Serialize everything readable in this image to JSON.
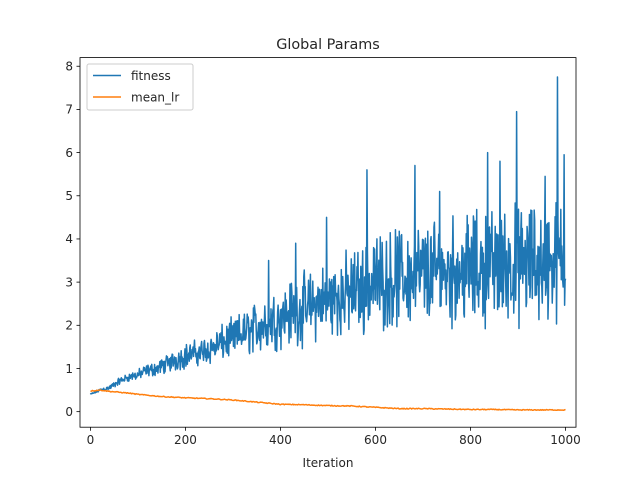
{
  "chart_data": {
    "type": "line",
    "title": "Global Params",
    "xlabel": "Iteration",
    "ylabel": "",
    "xlim": [
      -22,
      1022
    ],
    "ylim": [
      -0.36,
      8.2
    ],
    "xticks": [
      0,
      200,
      400,
      600,
      800,
      1000
    ],
    "yticks": [
      0,
      1,
      2,
      3,
      4,
      5,
      6,
      7,
      8
    ],
    "legend_position": "top-left",
    "grid": false,
    "series": [
      {
        "name": "fitness",
        "color": "#1f77b4",
        "x": [
          0,
          20,
          40,
          60,
          80,
          100,
          120,
          140,
          160,
          180,
          200,
          220,
          240,
          260,
          280,
          300,
          320,
          340,
          360,
          380,
          400,
          420,
          440,
          460,
          480,
          500,
          520,
          540,
          560,
          580,
          600,
          620,
          640,
          660,
          680,
          700,
          720,
          740,
          760,
          780,
          800,
          820,
          840,
          860,
          880,
          900,
          920,
          940,
          960,
          980,
          1000
        ],
        "y": [
          0.4,
          0.5,
          0.55,
          0.7,
          0.8,
          0.85,
          0.95,
          1.0,
          1.1,
          1.2,
          1.3,
          1.35,
          1.4,
          1.5,
          1.6,
          1.7,
          1.8,
          1.9,
          2.0,
          2.1,
          2.2,
          2.3,
          2.35,
          2.4,
          2.5,
          2.6,
          2.65,
          2.7,
          2.8,
          2.9,
          3.0,
          3.05,
          3.1,
          3.1,
          3.15,
          3.2,
          3.2,
          3.25,
          3.25,
          3.3,
          3.3,
          3.3,
          3.35,
          3.35,
          3.4,
          3.4,
          3.4,
          3.45,
          3.45,
          3.5,
          3.5
        ],
        "noise_amplitude": [
          0.02,
          0.05,
          0.08,
          0.1,
          0.12,
          0.15,
          0.18,
          0.2,
          0.25,
          0.3,
          0.35,
          0.35,
          0.4,
          0.45,
          0.5,
          0.55,
          0.6,
          0.7,
          0.75,
          0.8,
          0.85,
          0.9,
          0.95,
          1.0,
          1.0,
          1.05,
          1.1,
          1.15,
          1.2,
          1.25,
          1.3,
          1.3,
          1.35,
          1.4,
          1.4,
          1.45,
          1.45,
          1.5,
          1.5,
          1.5,
          1.55,
          1.55,
          1.6,
          1.6,
          1.6,
          1.65,
          1.65,
          1.7,
          1.7,
          1.7,
          1.7
        ],
        "peaks": [
          [
            375,
            3.5
          ],
          [
            432,
            3.9
          ],
          [
            497,
            4.5
          ],
          [
            582,
            5.6
          ],
          [
            596,
            3.8
          ],
          [
            683,
            5.7
          ],
          [
            735,
            5.1
          ],
          [
            836,
            6.0
          ],
          [
            862,
            5.8
          ],
          [
            897,
            6.95
          ],
          [
            957,
            5.45
          ],
          [
            983,
            7.75
          ],
          [
            997,
            5.95
          ]
        ]
      },
      {
        "name": "mean_lr",
        "color": "#ff7f0e",
        "x": [
          0,
          20,
          40,
          60,
          80,
          100,
          150,
          200,
          250,
          300,
          350,
          400,
          450,
          500,
          550,
          600,
          650,
          700,
          750,
          800,
          850,
          900,
          950,
          1000
        ],
        "y": [
          0.48,
          0.5,
          0.47,
          0.45,
          0.43,
          0.4,
          0.35,
          0.32,
          0.3,
          0.27,
          0.22,
          0.17,
          0.16,
          0.14,
          0.13,
          0.1,
          0.07,
          0.07,
          0.06,
          0.05,
          0.05,
          0.04,
          0.04,
          0.04
        ]
      }
    ]
  }
}
